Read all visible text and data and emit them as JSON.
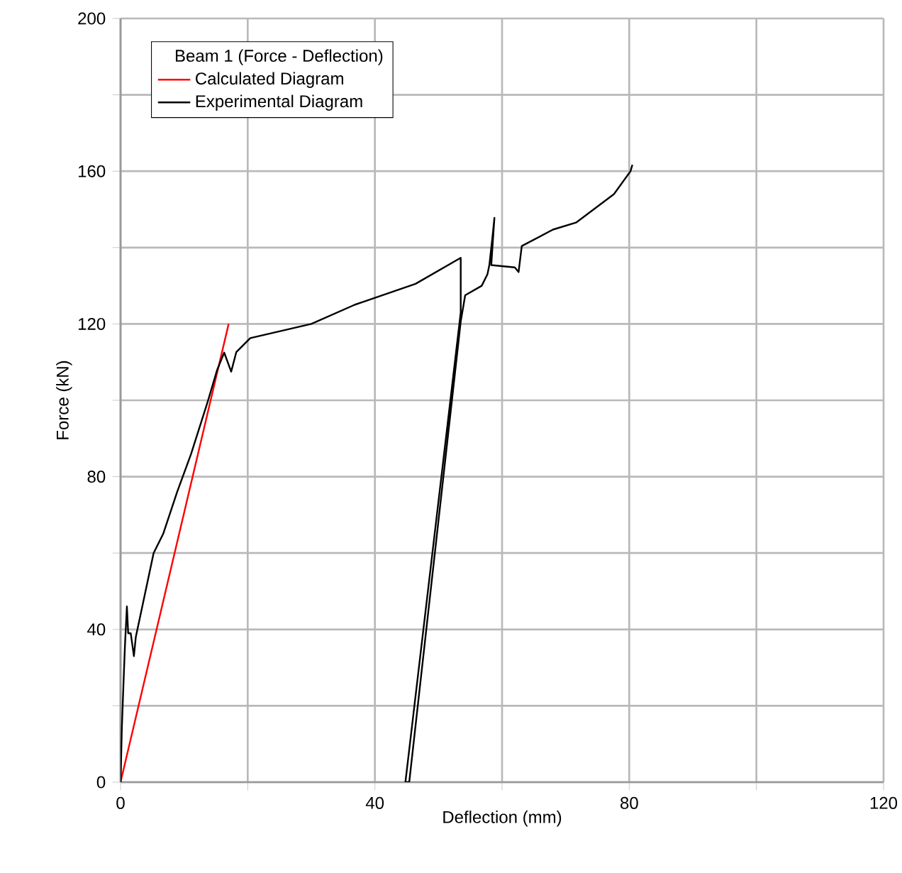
{
  "chart_data": {
    "type": "line",
    "xlabel": "Deflection (mm)",
    "ylabel": "Force (kN)",
    "legend_title": "Beam 1 (Force - Deflection)",
    "xlim": [
      0,
      120
    ],
    "ylim": [
      0,
      200
    ],
    "xticks": [
      0,
      {
        "value": 20,
        "label": null
      },
      40,
      {
        "value": 60,
        "label": null
      },
      80,
      {
        "value": 100,
        "label": null
      },
      120
    ],
    "yticks": [
      0,
      {
        "value": 20,
        "label": null
      },
      40,
      {
        "value": 60,
        "label": null
      },
      80,
      {
        "value": 100,
        "label": null
      },
      120,
      {
        "value": 140,
        "label": null
      },
      160,
      {
        "value": 180,
        "label": null
      },
      200
    ],
    "grid": true,
    "legend": "top left",
    "marker": "none",
    "line_style": "solid",
    "series": [
      {
        "name": "Calculated Diagram",
        "color": "#ff0000",
        "x": [
          0,
          17
        ],
        "values": [
          0,
          120
        ]
      },
      {
        "name": "Experimental Diagram",
        "color": "#000000",
        "x": [
          0,
          0.2,
          0.5,
          0.7,
          1.0,
          1.2,
          1.6,
          2.1,
          2.4,
          5.2,
          6.7,
          8.9,
          11.1,
          13.7,
          15.2,
          16.3,
          17.4,
          18.2,
          20.4,
          30,
          36.8,
          46.4,
          53.5,
          53.5,
          44.8,
          45.4,
          53.5,
          54.2,
          56.8,
          57.7,
          58.0,
          58.5,
          58.8,
          58.3,
          62,
          62.6,
          63.1,
          68,
          71.7,
          77.6,
          80.2,
          80.5
        ],
        "values": [
          0,
          14,
          27.5,
          36,
          46,
          39,
          39,
          33,
          38,
          60,
          65,
          76,
          86,
          99.6,
          108,
          112.5,
          107.5,
          112.6,
          116.3,
          120,
          125,
          130.5,
          137.3,
          123,
          0,
          0,
          120.6,
          127.5,
          130,
          133,
          135.4,
          142.9,
          147.8,
          135.4,
          134.8,
          133.6,
          140.4,
          144.7,
          146.6,
          154,
          160,
          161.7
        ]
      }
    ]
  }
}
